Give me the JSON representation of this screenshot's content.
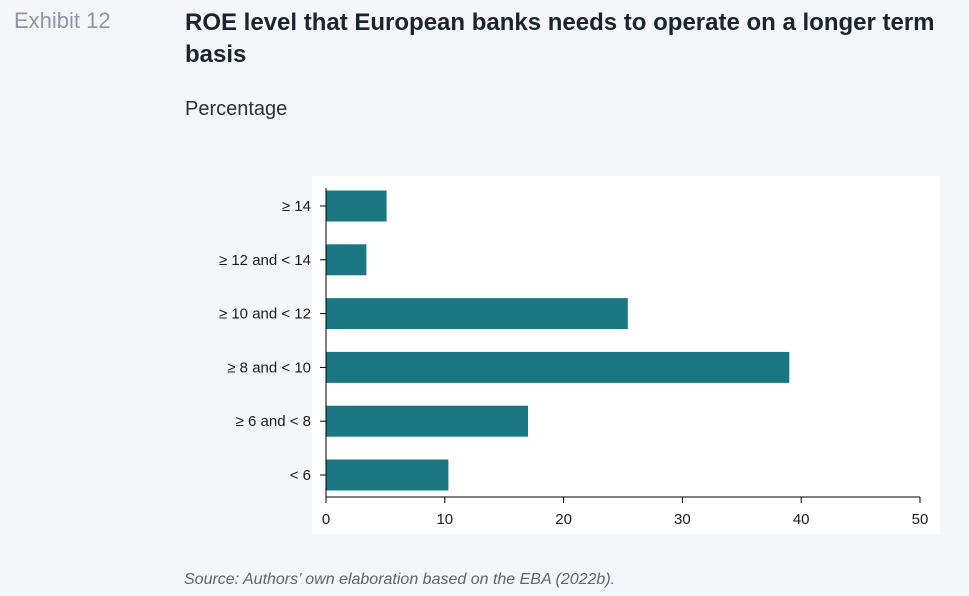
{
  "header": {
    "exhibit_label": "Exhibit 12",
    "title": "ROE level that European banks needs to operate on a longer term basis",
    "subtitle": "Percentage"
  },
  "footer": {
    "source": "Source: Authors’ own elaboration based on the EBA (2022b)."
  },
  "colors": {
    "bar": "#1b7882",
    "axis": "#000000",
    "plot_background": "#ffffff",
    "page_background": "#f4f6f9"
  },
  "chart_data": {
    "type": "bar",
    "orientation": "horizontal",
    "categories": [
      "≥ 14",
      "≥ 12 and < 14",
      "≥ 10 and < 12",
      "≥ 8 and < 10",
      "≥ 6 and < 8",
      "< 6"
    ],
    "values": [
      5.1,
      3.4,
      25.4,
      39.0,
      17.0,
      10.3
    ],
    "x_ticks": [
      0,
      10,
      20,
      30,
      40,
      50
    ],
    "xlim": [
      0,
      50
    ],
    "title": "ROE level that European banks needs to operate on a longer term basis",
    "subtitle": "Percentage",
    "xlabel": "",
    "ylabel": "",
    "grid": false,
    "legend": "none"
  }
}
